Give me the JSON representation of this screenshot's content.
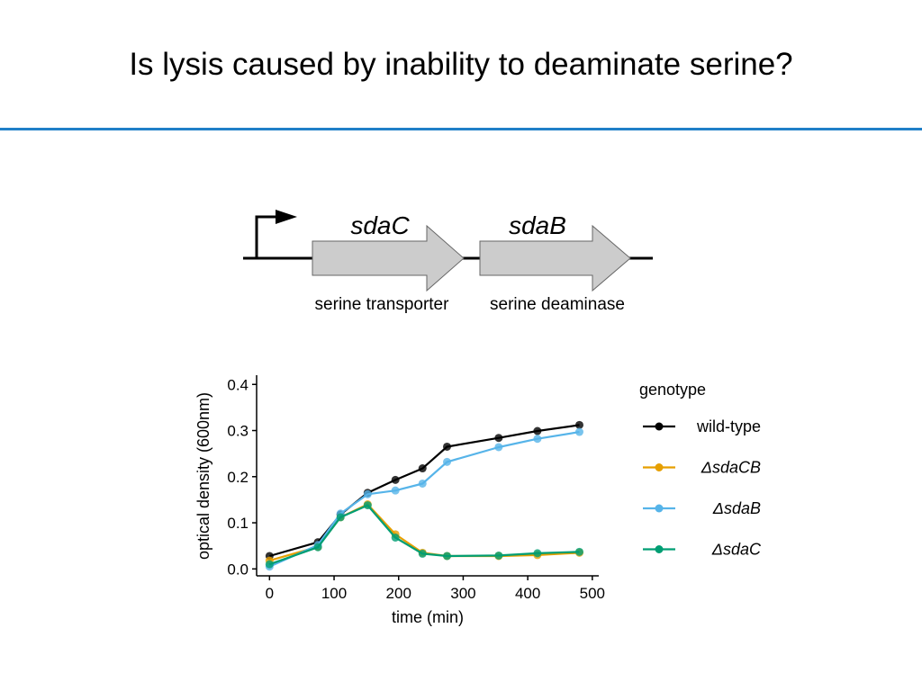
{
  "slide": {
    "title": "Is lysis caused by inability to deaminate serine?",
    "accent_color": "#1f7fc8"
  },
  "diagram": {
    "genes": [
      {
        "name": "sdaC",
        "function": "serine transporter"
      },
      {
        "name": "sdaB",
        "function": "serine deaminase"
      }
    ],
    "arrow_fill": "#cccccc",
    "promoter": "promoter-arrow-icon"
  },
  "chart_data": {
    "type": "line",
    "xlabel": "time (min)",
    "ylabel": "optical density (600nm)",
    "xlim": [
      -20,
      510
    ],
    "ylim": [
      -0.015,
      0.42
    ],
    "xticks": [
      0,
      100,
      200,
      300,
      400,
      500
    ],
    "yticks": [
      0.0,
      0.1,
      0.2,
      0.3,
      0.4
    ],
    "ytick_labels": [
      "0.0",
      "0.1",
      "0.2",
      "0.3",
      "0.4"
    ],
    "grid": false,
    "legend": {
      "title": "genotype",
      "placement": "right"
    },
    "series": [
      {
        "name": "wild-type",
        "italic": false,
        "color": "#000000",
        "x": [
          0,
          75,
          110,
          152,
          195,
          237,
          275,
          355,
          415,
          480
        ],
        "y": [
          0.028,
          0.058,
          0.118,
          0.165,
          0.193,
          0.218,
          0.265,
          0.284,
          0.299,
          0.312
        ]
      },
      {
        "name": "ΔsdaCB",
        "italic": true,
        "color": "#e69f00",
        "x": [
          0,
          75,
          110,
          152,
          195,
          237,
          275,
          355,
          415,
          480
        ],
        "y": [
          0.018,
          0.048,
          0.112,
          0.14,
          0.075,
          0.035,
          0.028,
          0.028,
          0.03,
          0.035
        ]
      },
      {
        "name": "ΔsdaB",
        "italic": true,
        "color": "#56b4e9",
        "x": [
          0,
          75,
          110,
          152,
          195,
          237,
          275,
          355,
          415,
          480
        ],
        "y": [
          0.005,
          0.052,
          0.12,
          0.162,
          0.17,
          0.185,
          0.232,
          0.264,
          0.282,
          0.297
        ]
      },
      {
        "name": "ΔsdaC",
        "italic": true,
        "color": "#009e73",
        "x": [
          0,
          75,
          110,
          152,
          195,
          237,
          275,
          355,
          415,
          480
        ],
        "y": [
          0.01,
          0.047,
          0.112,
          0.138,
          0.068,
          0.033,
          0.028,
          0.029,
          0.034,
          0.037
        ]
      }
    ]
  }
}
